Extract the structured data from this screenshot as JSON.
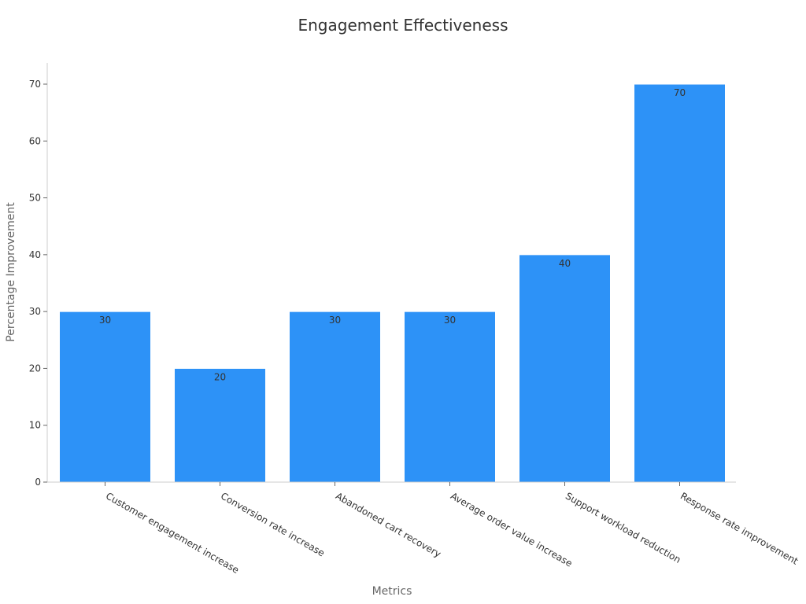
{
  "chart_data": {
    "type": "bar",
    "title": "Engagement Effectiveness",
    "xlabel": "Metrics",
    "ylabel": "Percentage Improvement",
    "categories": [
      "Customer engagement increase",
      "Conversion rate increase",
      "Abandoned cart recovery",
      "Average order value increase",
      "Support workload reduction",
      "Response rate improvement"
    ],
    "values": [
      30,
      20,
      30,
      30,
      40,
      70
    ],
    "ylim": [
      0,
      70
    ],
    "yticks": [
      0,
      10,
      20,
      30,
      40,
      50,
      60,
      70
    ],
    "grid": false,
    "bar_color": "#2d92f7",
    "data_labels": [
      "30",
      "20",
      "30",
      "30",
      "40",
      "70"
    ]
  }
}
